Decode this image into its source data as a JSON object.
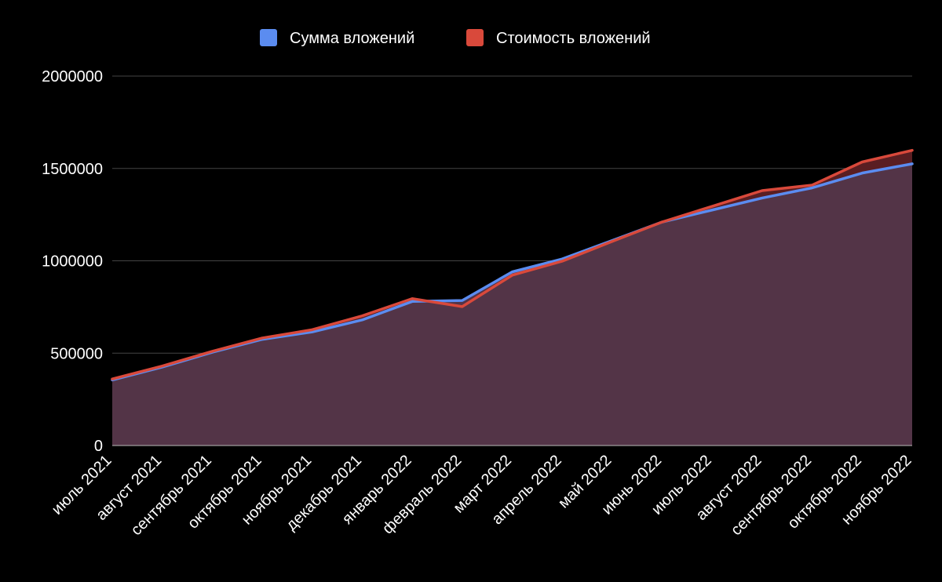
{
  "chart_data": {
    "type": "area",
    "title": "",
    "xlabel": "",
    "ylabel": "",
    "categories": [
      "июль 2021",
      "август 2021",
      "сентябрь 2021",
      "октябрь 2021",
      "ноябрь 2021",
      "декабрь 2021",
      "январь 2022",
      "февраль 2022",
      "март 2022",
      "апрель 2022",
      "май 2022",
      "июнь 2022",
      "июль 2022",
      "август 2022",
      "сентябрь 2022",
      "октябрь 2022",
      "ноябрь 2022"
    ],
    "y_ticks": [
      "0",
      "500000",
      "1000000",
      "1500000",
      "2000000"
    ],
    "ylim": [
      0,
      2000000
    ],
    "grid": true,
    "legend_position": "top",
    "series": [
      {
        "name": "Сумма вложений",
        "color": "#5b8cf0",
        "values": [
          355000,
          425000,
          505000,
          575000,
          615000,
          680000,
          780000,
          785000,
          940000,
          1010000,
          1110000,
          1210000,
          1275000,
          1340000,
          1395000,
          1475000,
          1525000
        ]
      },
      {
        "name": "Стоимость вложений",
        "color": "#d9493b",
        "values": [
          360000,
          430000,
          510000,
          582000,
          627000,
          702000,
          795000,
          752000,
          922000,
          998000,
          1105000,
          1210000,
          1295000,
          1380000,
          1410000,
          1535000,
          1598000
        ]
      }
    ]
  }
}
